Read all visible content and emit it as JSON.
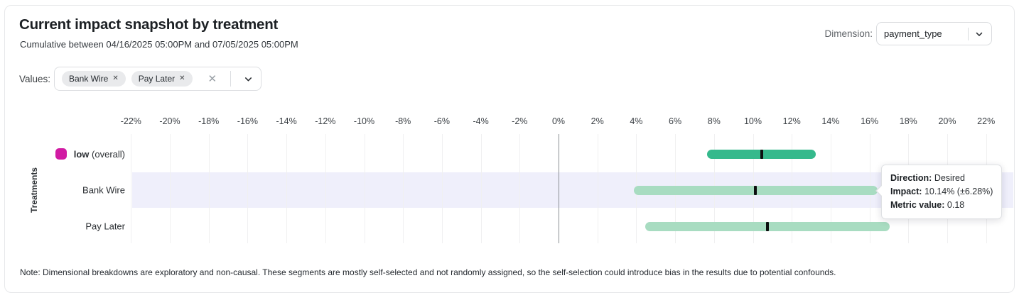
{
  "header": {
    "title": "Current impact snapshot by treatment",
    "subtitle": "Cumulative between 04/16/2025 05:00PM and 07/05/2025 05:00PM",
    "dimension_label": "Dimension:",
    "dimension_value": "payment_type"
  },
  "filters": {
    "values_label": "Values:",
    "chips": [
      {
        "label": "Bank Wire"
      },
      {
        "label": "Pay Later"
      }
    ],
    "close_glyph": "✕",
    "clear_glyph": "✕"
  },
  "chart_data": {
    "type": "bar",
    "variant": "horizontal-confidence-intervals",
    "title": "Current impact snapshot by treatment",
    "xlabel": "",
    "ylabel": "Treatments",
    "x_unit": "%",
    "xlim": [
      -23,
      23
    ],
    "tick_values": [
      -22,
      -20,
      -18,
      -16,
      -14,
      -12,
      -10,
      -8,
      -6,
      -4,
      -2,
      0,
      2,
      4,
      6,
      8,
      10,
      12,
      14,
      16,
      18,
      20,
      22
    ],
    "tick_suffix": "%",
    "grid": true,
    "zero_line": true,
    "rows": [
      {
        "label_bold": "low",
        "label_rest": " (overall)",
        "legend_color": "#d11ba3",
        "bar_color": "#35b98c",
        "impact": 10.45,
        "low": 7.65,
        "high": 13.25,
        "highlighted": false
      },
      {
        "label": "Bank Wire",
        "bar_color": "#a8dcc1",
        "impact": 10.14,
        "low": 3.86,
        "high": 16.42,
        "highlighted": true
      },
      {
        "label": "Pay Later",
        "bar_color": "#a8dcc1",
        "impact": 10.75,
        "low": 4.45,
        "high": 17.05,
        "highlighted": false
      }
    ],
    "highlight_band_color": "#efeffb"
  },
  "tooltip": {
    "rows": [
      {
        "label": "Direction:",
        "value": "Desired"
      },
      {
        "label": "Impact:",
        "value": "10.14% (±6.28%)"
      },
      {
        "label": "Metric value:",
        "value": "0.18"
      }
    ]
  },
  "note": "Note: Dimensional breakdowns are exploratory and non-causal. These segments are mostly self-selected and not randomly assigned, so the self-selection could introduce bias in the results due to potential confounds."
}
